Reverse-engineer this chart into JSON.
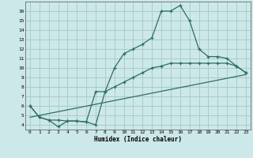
{
  "xlabel": "Humidex (Indice chaleur)",
  "xlim": [
    -0.5,
    23.5
  ],
  "ylim": [
    3.5,
    17.0
  ],
  "yticks": [
    4,
    5,
    6,
    7,
    8,
    9,
    10,
    11,
    12,
    13,
    14,
    15,
    16
  ],
  "xticks": [
    0,
    1,
    2,
    3,
    4,
    5,
    6,
    7,
    8,
    9,
    10,
    11,
    12,
    13,
    14,
    15,
    16,
    17,
    18,
    19,
    20,
    21,
    22,
    23
  ],
  "bg_color": "#cce8e8",
  "line_color": "#2d6e65",
  "grid_color": "#aacccc",
  "line1_x": [
    0,
    1,
    2,
    3,
    4,
    5,
    6,
    7,
    8,
    9,
    10,
    11,
    12,
    13,
    14,
    15,
    16,
    17,
    18,
    19,
    20,
    21,
    22,
    23
  ],
  "line1_y": [
    6.0,
    4.8,
    4.5,
    3.8,
    4.4,
    4.4,
    4.3,
    4.0,
    7.5,
    10.0,
    11.5,
    12.0,
    12.5,
    13.2,
    16.0,
    16.0,
    16.6,
    15.0,
    12.0,
    11.2,
    11.2,
    11.0,
    10.2,
    9.5
  ],
  "line2_x": [
    0,
    1,
    2,
    3,
    4,
    5,
    6,
    7,
    8,
    9,
    10,
    11,
    12,
    13,
    14,
    15,
    16,
    17,
    18,
    19,
    20,
    21,
    22,
    23
  ],
  "line2_y": [
    6.0,
    4.8,
    4.5,
    4.5,
    4.4,
    4.4,
    4.3,
    7.5,
    7.5,
    8.0,
    8.5,
    9.0,
    9.5,
    10.0,
    10.2,
    10.5,
    10.5,
    10.5,
    10.5,
    10.5,
    10.5,
    10.5,
    10.2,
    9.5
  ],
  "line3_x": [
    0,
    23
  ],
  "line3_y": [
    4.8,
    9.3
  ]
}
